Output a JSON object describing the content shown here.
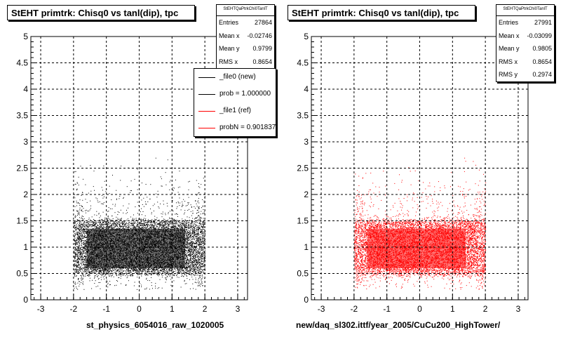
{
  "chart_data": [
    {
      "type": "scatter",
      "title": "StEHT primtrk: Chisq0 vs tanl(dip), tpc",
      "xlabel": "st_physics_6054016_raw_1020005",
      "ylabel": "",
      "xlim": [
        -3.3,
        3.3
      ],
      "ylim": [
        0,
        5
      ],
      "x_ticks": [
        "-3",
        "-2",
        "-1",
        "0",
        "1",
        "2",
        "3"
      ],
      "y_ticks": [
        "0",
        "0.5",
        "1",
        "1.5",
        "2",
        "2.5",
        "3",
        "3.5",
        "4",
        "4.5",
        "5"
      ],
      "grid": true,
      "marker_color": "#000000",
      "series": [
        {
          "name": "_file0 (new)",
          "x_range": [
            -2,
            2
          ],
          "core_y_range": [
            0.5,
            1.5
          ],
          "color": "#000000"
        }
      ],
      "stats": {
        "header": "StEHTQaPtrkChi0TanlT",
        "rows": [
          {
            "label": "Entries",
            "value": "27864"
          },
          {
            "label": "Mean x",
            "value": "-0.02746"
          },
          {
            "label": "Mean y",
            "value": "0.9799"
          },
          {
            "label": "RMS x",
            "value": "0.8654"
          }
        ]
      },
      "legend": {
        "placement": "top-right",
        "items": [
          {
            "label": "_file0 (new)",
            "color": "#000000"
          },
          {
            "label": "prob = 1.000000",
            "color": "#000000"
          },
          {
            "label": "_file1 (ref)",
            "color": "#ff0000"
          },
          {
            "label": "probN = 0.901837",
            "color": "#ff0000"
          }
        ]
      }
    },
    {
      "type": "scatter",
      "title": "StEHT primtrk: Chisq0 vs tanl(dip), tpc",
      "xlabel": "new/daq_sl302.ittf/year_2005/CuCu200_HighTower/",
      "ylabel": "",
      "xlim": [
        -3.3,
        3.3
      ],
      "ylim": [
        0,
        5
      ],
      "x_ticks": [
        "-3",
        "-2",
        "-1",
        "0",
        "1",
        "2",
        "3"
      ],
      "y_ticks": [
        "0",
        "0.5",
        "1",
        "1.5",
        "2",
        "2.5",
        "3",
        "3.5",
        "4",
        "4.5",
        "5"
      ],
      "grid": true,
      "marker_color": "#ff0000",
      "series": [
        {
          "name": "_file1 (ref)",
          "x_range": [
            -2,
            2
          ],
          "core_y_range": [
            0.5,
            1.5
          ],
          "color": "#ff0000"
        }
      ],
      "stats": {
        "header": "StEHTQaPtrkChi0TanlT",
        "rows": [
          {
            "label": "Entries",
            "value": "27991"
          },
          {
            "label": "Mean x",
            "value": "-0.03099"
          },
          {
            "label": "Mean y",
            "value": "0.9805"
          },
          {
            "label": "RMS x",
            "value": "0.8654"
          },
          {
            "label": "RMS y",
            "value": "0.2974"
          }
        ]
      }
    }
  ]
}
